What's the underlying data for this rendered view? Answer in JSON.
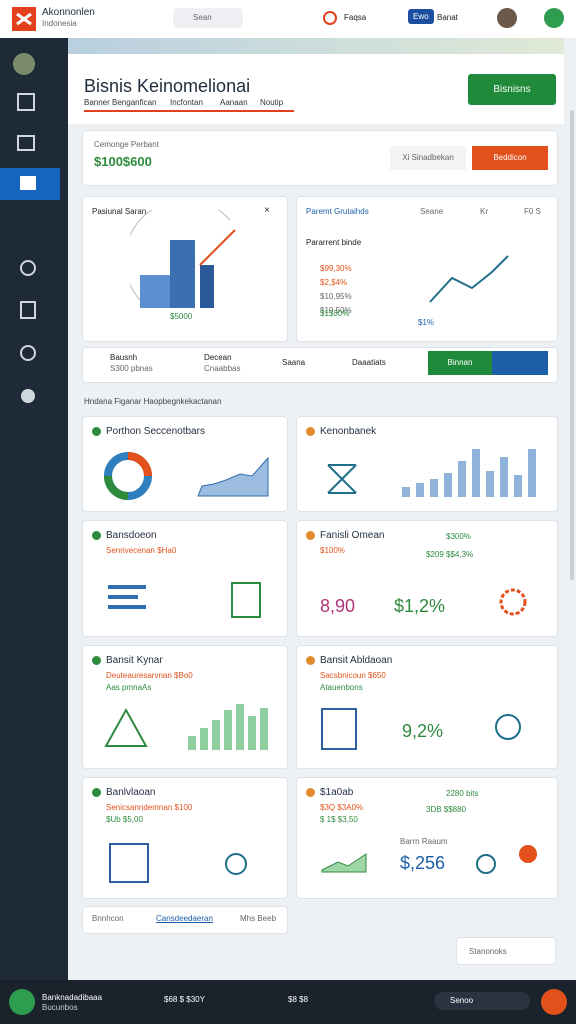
{
  "header": {
    "brand": "Akonnonlen",
    "brand_sub": "Indonesia",
    "search": "Sean",
    "user_label": "Faqsa",
    "badge": "Ewo",
    "button": "Banat"
  },
  "page": {
    "title": "Bisnis Keinomelionai",
    "tabs": [
      "Banner Benganfican",
      "Incfontan",
      "Aanaan",
      "Noutip"
    ],
    "action": "Bisnisns"
  },
  "summary": {
    "label": "Cemonge Perbant",
    "value": "$100$600",
    "button_secondary": "Xi Sinadbekan",
    "button_primary": "Beddicon"
  },
  "report": {
    "title": "Pasiunal Saran",
    "close": "×",
    "value": "$5000"
  },
  "panel": {
    "tabs": [
      "Paremt Grutaihds",
      "Seane",
      "Kr",
      "F0 S"
    ],
    "label": "Pararrent binde",
    "values": [
      "$99,30%",
      "$2,$4%",
      "$10,95%",
      "$10,50%",
      "$1$30%"
    ],
    "footer": "$1%"
  },
  "toolbar": {
    "items": [
      [
        "Bausnh",
        "S300 pbnas"
      ],
      [
        "Decean",
        "Cnaabbas"
      ],
      [
        "Saana"
      ],
      [
        "Daaatiats"
      ]
    ],
    "button": "Binnan"
  },
  "section": "Hndana Figanar Haopbegnkekactanan",
  "cards": [
    {
      "title": "Porthon Seccenotbars"
    },
    {
      "title": "Kenonbanek"
    },
    {
      "title": "Bansdoeon",
      "lines": [
        "Senrivecenan $Ha0"
      ]
    },
    {
      "title": "Fanisli Omean",
      "badge": "$300%",
      "lines": [
        "$100%",
        "$209 $$4,3%"
      ],
      "big": [
        "8,90",
        "$1,2%"
      ]
    },
    {
      "title": "Bansit Kynar",
      "lines": [
        "Deuteauresarvnan $Bo0",
        "Aas pmnaAs"
      ]
    },
    {
      "title": "Bansit Abldaoan",
      "lines": [
        "Sacsbnicoun $650",
        "Atauenbons"
      ],
      "big": [
        "9,2%"
      ]
    },
    {
      "title": "Banlvlaoan",
      "lines": [
        "Senicsanndemnan $100",
        "$Ub $5,00"
      ]
    },
    {
      "title": "$1a0ab",
      "badge": "2280 bits",
      "lines": [
        "$3Q $3A0%",
        "$ 1$ $3,50",
        "3DB $$880"
      ],
      "note": "Barrn Raaum",
      "big": [
        "$,256"
      ]
    }
  ],
  "footer_tabs": [
    "Bnnhcon",
    "Cansdeedaeran",
    "Mhs Beeb"
  ],
  "dropdown": "Stanonoks",
  "bottom": {
    "app": "Banknadadibaaa",
    "app_sub": "Bucunbos",
    "stat1": "$68 $ $30Y",
    "stat2": "$8 $8",
    "search": "Senoo"
  }
}
